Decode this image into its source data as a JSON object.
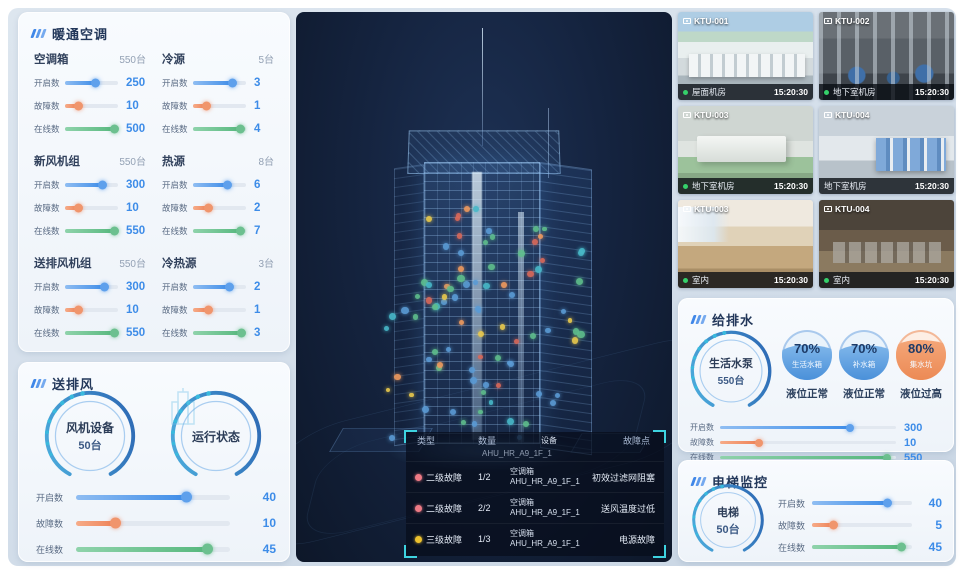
{
  "colors": {
    "accent_blue": "#3D8CE8",
    "accent_orange": "#EF8A64",
    "accent_green": "#63BC8C",
    "accent_cyan": "#3ED3E0"
  },
  "hvac": {
    "title": "暖通空调",
    "groups": [
      {
        "name": "空调箱",
        "count": "550台",
        "rows": [
          {
            "label": "开启数",
            "value": "250",
            "pct": 58
          },
          {
            "label": "故障数",
            "value": "10",
            "pct": 26
          },
          {
            "label": "在线数",
            "value": "500",
            "pct": 94
          }
        ]
      },
      {
        "name": "冷源",
        "count": "5台",
        "rows": [
          {
            "label": "开启数",
            "value": "3",
            "pct": 75
          },
          {
            "label": "故障数",
            "value": "1",
            "pct": 26
          },
          {
            "label": "在线数",
            "value": "4",
            "pct": 90
          }
        ]
      },
      {
        "name": "新风机组",
        "count": "550台",
        "rows": [
          {
            "label": "开启数",
            "value": "300",
            "pct": 72
          },
          {
            "label": "故障数",
            "value": "10",
            "pct": 26
          },
          {
            "label": "在线数",
            "value": "550",
            "pct": 94
          }
        ]
      },
      {
        "name": "热源",
        "count": "8台",
        "rows": [
          {
            "label": "开启数",
            "value": "6",
            "pct": 66
          },
          {
            "label": "故障数",
            "value": "2",
            "pct": 30
          },
          {
            "label": "在线数",
            "value": "7",
            "pct": 90
          }
        ]
      },
      {
        "name": "送排风机组",
        "count": "550台",
        "rows": [
          {
            "label": "开启数",
            "value": "300",
            "pct": 76
          },
          {
            "label": "故障数",
            "value": "10",
            "pct": 26
          },
          {
            "label": "在线数",
            "value": "550",
            "pct": 94
          }
        ]
      },
      {
        "name": "冷热源",
        "count": "3台",
        "rows": [
          {
            "label": "开启数",
            "value": "2",
            "pct": 70
          },
          {
            "label": "故障数",
            "value": "1",
            "pct": 30
          },
          {
            "label": "在线数",
            "value": "3",
            "pct": 92
          }
        ]
      }
    ]
  },
  "fan": {
    "title": "送排风",
    "circles": [
      {
        "name": "风机设备",
        "count": "50台"
      },
      {
        "name": "运行状态",
        "count": ""
      }
    ],
    "rows": [
      {
        "label": "开启数",
        "value": "40",
        "pct": 72
      },
      {
        "label": "故障数",
        "value": "10",
        "pct": 26
      },
      {
        "label": "在线数",
        "value": "45",
        "pct": 86
      }
    ]
  },
  "building": {
    "fault_table": {
      "headers": [
        "类型",
        "数量",
        "设备",
        "故障点"
      ],
      "clipped_device_id": "AHU_HR_A9_1F_1",
      "rows": [
        {
          "level": "二级故障",
          "severity": "red",
          "count": "1/2",
          "device_type": "空调箱",
          "device_id": "AHU_HR_A9_1F_1",
          "fault": "初效过滤网阻塞"
        },
        {
          "level": "二级故障",
          "severity": "red",
          "count": "2/2",
          "device_type": "空调箱",
          "device_id": "AHU_HR_A9_1F_1",
          "fault": "送风温度过低"
        },
        {
          "level": "三级故障",
          "severity": "yellow",
          "count": "1/3",
          "device_type": "空调箱",
          "device_id": "AHU_HR_A9_1F_1",
          "fault": "电源故障"
        }
      ]
    }
  },
  "cameras": {
    "tiles": [
      {
        "id": "KTU-001",
        "location": "屋面机房",
        "time": "15:20:30",
        "online": true
      },
      {
        "id": "KTU-002",
        "location": "地下室机房",
        "time": "15:20:30",
        "online": true
      },
      {
        "id": "KTU-003",
        "location": "地下室机房",
        "time": "15:20:30",
        "online": true
      },
      {
        "id": "KTU-004",
        "location": "地下室机房",
        "time": "15:20:30",
        "online": false
      },
      {
        "id": "KTU-003",
        "location": "室内",
        "time": "15:20:30",
        "online": true
      },
      {
        "id": "KTU-004",
        "location": "室内",
        "time": "15:20:30",
        "online": true
      }
    ]
  },
  "water": {
    "title": "给排水",
    "pump": {
      "name": "生活水泵",
      "count": "550台"
    },
    "tanks": [
      {
        "percent": "70%",
        "pct": 70,
        "name": "生活水箱",
        "status": "液位正常",
        "color": "blue"
      },
      {
        "percent": "70%",
        "pct": 70,
        "name": "补水箱",
        "status": "液位正常",
        "color": "blue"
      },
      {
        "percent": "80%",
        "pct": 80,
        "name": "集水坑",
        "status": "液位过高",
        "color": "orange"
      }
    ],
    "rows": [
      {
        "label": "开启数",
        "value": "300",
        "pct": 74
      },
      {
        "label": "故障数",
        "value": "10",
        "pct": 22
      },
      {
        "label": "在线数",
        "value": "550",
        "pct": 95
      }
    ]
  },
  "elevator": {
    "title": "电梯监控",
    "circle": {
      "name": "电梯",
      "count": "50台"
    },
    "rows": [
      {
        "label": "开启数",
        "value": "40",
        "pct": 76
      },
      {
        "label": "故障数",
        "value": "5",
        "pct": 22
      },
      {
        "label": "在线数",
        "value": "45",
        "pct": 90
      }
    ]
  }
}
